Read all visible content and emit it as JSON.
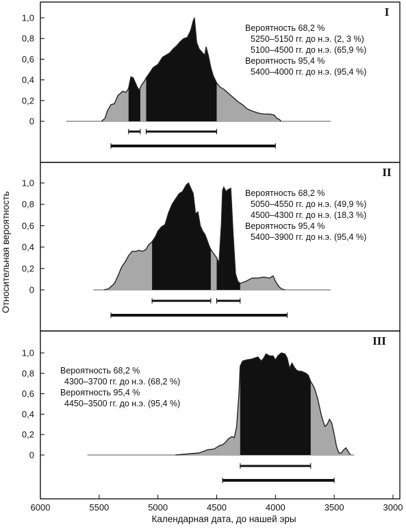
{
  "chart_data": {
    "type": "area",
    "xlabel": "Календарная дата, до нашей эры",
    "ylabel": "Относительная вероятность",
    "x_ticks": [
      6000,
      5500,
      5000,
      4500,
      4000,
      3500,
      3000
    ],
    "xlim": [
      6000,
      3000
    ],
    "y_ticks": [
      0,
      0.2,
      0.4,
      0.6,
      0.8,
      1.0
    ],
    "y_tick_labels": [
      "0",
      "0,2",
      "0,4",
      "0,6",
      "0,8",
      "1,0"
    ],
    "ylim": [
      0,
      1.0
    ],
    "colors": {
      "range68": "#111111",
      "range95": "#a8a8a8",
      "baseline": "#555555",
      "frame": "#000000"
    },
    "panels": [
      {
        "label": "I",
        "text_side": "right",
        "text": {
          "p68": "Вероятность 68,2 %",
          "r68": [
            "5250–5150 гг. до н.э. (2, 3 %)",
            "5100–4500 гг. до н.э. (65,9 %)"
          ],
          "p95": "Вероятность 95,4 %",
          "r95": [
            "5400–4000 гг. до н.э. (95,4 %)"
          ]
        },
        "baseline_range": [
          5780,
          3530
        ],
        "curve": [
          [
            5480,
            0
          ],
          [
            5450,
            0.03
          ],
          [
            5430,
            0.1
          ],
          [
            5400,
            0.16
          ],
          [
            5370,
            0.17
          ],
          [
            5340,
            0.25
          ],
          [
            5300,
            0.29
          ],
          [
            5270,
            0.28
          ],
          [
            5250,
            0.32
          ],
          [
            5230,
            0.43
          ],
          [
            5210,
            0.42
          ],
          [
            5180,
            0.34
          ],
          [
            5160,
            0.3
          ],
          [
            5140,
            0.35
          ],
          [
            5120,
            0.38
          ],
          [
            5100,
            0.42
          ],
          [
            5070,
            0.47
          ],
          [
            5040,
            0.52
          ],
          [
            5000,
            0.55
          ],
          [
            4960,
            0.62
          ],
          [
            4930,
            0.64
          ],
          [
            4900,
            0.66
          ],
          [
            4870,
            0.7
          ],
          [
            4840,
            0.73
          ],
          [
            4810,
            0.77
          ],
          [
            4780,
            0.8
          ],
          [
            4750,
            0.81
          ],
          [
            4720,
            0.88
          ],
          [
            4700,
            0.97
          ],
          [
            4690,
            1.0
          ],
          [
            4670,
            0.76
          ],
          [
            4650,
            0.7
          ],
          [
            4620,
            0.66
          ],
          [
            4600,
            0.64
          ],
          [
            4590,
            0.72
          ],
          [
            4570,
            0.63
          ],
          [
            4550,
            0.52
          ],
          [
            4530,
            0.44
          ],
          [
            4500,
            0.37
          ],
          [
            4470,
            0.33
          ],
          [
            4440,
            0.31
          ],
          [
            4410,
            0.28
          ],
          [
            4380,
            0.25
          ],
          [
            4350,
            0.22
          ],
          [
            4320,
            0.19
          ],
          [
            4280,
            0.16
          ],
          [
            4240,
            0.12
          ],
          [
            4200,
            0.1
          ],
          [
            4150,
            0.08
          ],
          [
            4100,
            0.07
          ],
          [
            4050,
            0.07
          ],
          [
            4010,
            0.06
          ],
          [
            3990,
            0.03
          ],
          [
            3970,
            0.02
          ],
          [
            3950,
            0
          ]
        ],
        "ranges68": [
          [
            5250,
            5150
          ],
          [
            5100,
            4500
          ]
        ],
        "ranges95": [
          [
            5400,
            4000
          ]
        ]
      },
      {
        "label": "II",
        "text_side": "right",
        "text": {
          "p68": "Вероятность 68,2 %",
          "r68": [
            "5050–4550 гг. до н.э. (49,9 %)",
            "4500–4300 гг. до н.э. (18,3 %)"
          ],
          "p95": "Вероятность 95,4 %",
          "r95": [
            "5400–3900 гг. до н.э. (95,4 %)"
          ]
        },
        "baseline_range": [
          5550,
          3530
        ],
        "curve": [
          [
            5460,
            0
          ],
          [
            5420,
            0.01
          ],
          [
            5400,
            0.03
          ],
          [
            5370,
            0.06
          ],
          [
            5340,
            0.13
          ],
          [
            5310,
            0.21
          ],
          [
            5280,
            0.26
          ],
          [
            5250,
            0.32
          ],
          [
            5220,
            0.36
          ],
          [
            5190,
            0.36
          ],
          [
            5160,
            0.37
          ],
          [
            5130,
            0.36
          ],
          [
            5100,
            0.38
          ],
          [
            5080,
            0.42
          ],
          [
            5050,
            0.45
          ],
          [
            5020,
            0.5
          ],
          [
            5000,
            0.55
          ],
          [
            4970,
            0.59
          ],
          [
            4940,
            0.61
          ],
          [
            4910,
            0.72
          ],
          [
            4880,
            0.8
          ],
          [
            4850,
            0.85
          ],
          [
            4820,
            0.9
          ],
          [
            4790,
            0.92
          ],
          [
            4760,
            0.98
          ],
          [
            4740,
            1.0
          ],
          [
            4720,
            0.95
          ],
          [
            4700,
            0.9
          ],
          [
            4680,
            0.71
          ],
          [
            4660,
            0.73
          ],
          [
            4640,
            0.6
          ],
          [
            4620,
            0.55
          ],
          [
            4600,
            0.52
          ],
          [
            4580,
            0.46
          ],
          [
            4560,
            0.4
          ],
          [
            4540,
            0.36
          ],
          [
            4520,
            0.33
          ],
          [
            4500,
            0.3
          ],
          [
            4480,
            0.25
          ],
          [
            4460,
            0.62
          ],
          [
            4450,
            0.93
          ],
          [
            4440,
            0.96
          ],
          [
            4420,
            0.92
          ],
          [
            4400,
            0.94
          ],
          [
            4380,
            0.95
          ],
          [
            4360,
            0.52
          ],
          [
            4340,
            0.15
          ],
          [
            4320,
            0.08
          ],
          [
            4300,
            0.06
          ],
          [
            4250,
            0.08
          ],
          [
            4200,
            0.11
          ],
          [
            4150,
            0.11
          ],
          [
            4100,
            0.12
          ],
          [
            4050,
            0.11
          ],
          [
            4020,
            0.13
          ],
          [
            4000,
            0.08
          ],
          [
            3970,
            0.03
          ],
          [
            3950,
            0.01
          ],
          [
            3920,
            0
          ]
        ],
        "ranges68": [
          [
            5050,
            4550
          ],
          [
            4500,
            4300
          ]
        ],
        "ranges95": [
          [
            5400,
            3900
          ]
        ]
      },
      {
        "label": "III",
        "text_side": "left",
        "text": {
          "p68": "Вероятность 68,2 %",
          "r68": [
            "4300–3700 гг. до н.э. (68,2 %)"
          ],
          "p95": "Вероятность 95,4 %",
          "r95": [
            "4450–3500 гг. до н.э. (95,4 %)"
          ]
        },
        "baseline_range": [
          5600,
          3330
        ],
        "curve": [
          [
            4850,
            0
          ],
          [
            4750,
            0.01
          ],
          [
            4650,
            0.02
          ],
          [
            4580,
            0.05
          ],
          [
            4520,
            0.06
          ],
          [
            4480,
            0.09
          ],
          [
            4450,
            0.1
          ],
          [
            4420,
            0.13
          ],
          [
            4400,
            0.16
          ],
          [
            4370,
            0.18
          ],
          [
            4350,
            0.17
          ],
          [
            4330,
            0.28
          ],
          [
            4310,
            0.61
          ],
          [
            4300,
            0.87
          ],
          [
            4280,
            0.92
          ],
          [
            4250,
            0.93
          ],
          [
            4200,
            0.94
          ],
          [
            4150,
            0.96
          ],
          [
            4120,
            0.92
          ],
          [
            4100,
            0.95
          ],
          [
            4080,
            0.99
          ],
          [
            4050,
            0.97
          ],
          [
            4020,
            0.97
          ],
          [
            4000,
            0.93
          ],
          [
            3980,
            0.97
          ],
          [
            3950,
            1.0
          ],
          [
            3920,
            0.99
          ],
          [
            3900,
            0.95
          ],
          [
            3880,
            0.85
          ],
          [
            3860,
            0.9
          ],
          [
            3840,
            0.86
          ],
          [
            3820,
            0.83
          ],
          [
            3800,
            0.82
          ],
          [
            3780,
            0.82
          ],
          [
            3760,
            0.81
          ],
          [
            3740,
            0.8
          ],
          [
            3720,
            0.78
          ],
          [
            3700,
            0.72
          ],
          [
            3670,
            0.66
          ],
          [
            3640,
            0.55
          ],
          [
            3610,
            0.39
          ],
          [
            3580,
            0.28
          ],
          [
            3560,
            0.3
          ],
          [
            3540,
            0.35
          ],
          [
            3520,
            0.31
          ],
          [
            3500,
            0.2
          ],
          [
            3480,
            0.08
          ],
          [
            3460,
            0.02
          ],
          [
            3440,
            0.02
          ],
          [
            3420,
            0.05
          ],
          [
            3400,
            0.07
          ],
          [
            3380,
            0.03
          ],
          [
            3360,
            0
          ]
        ],
        "ranges68": [
          [
            4300,
            3700
          ]
        ],
        "ranges95": [
          [
            4450,
            3500
          ]
        ]
      }
    ]
  }
}
